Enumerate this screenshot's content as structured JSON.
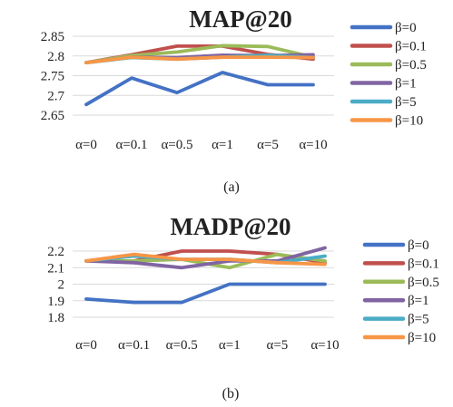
{
  "panels": [
    {
      "caption": "(a)",
      "chart_data": {
        "type": "line",
        "title": "MAP@20",
        "xlabel": "",
        "ylabel": "",
        "categories": [
          "α=0",
          "α=0.1",
          "α=0.5",
          "α=1",
          "α=5",
          "α=10"
        ],
        "ylim": [
          2.65,
          2.85
        ],
        "yticks": [
          "2.85",
          "2.8",
          "2.75",
          "2.7",
          "2.65"
        ],
        "ytick_values": [
          2.85,
          2.8,
          2.75,
          2.7,
          2.65
        ],
        "grid": true,
        "legend_position": "right",
        "series": [
          {
            "name": "β=0",
            "color": "#4472C4",
            "values": [
              2.677,
              2.744,
              2.707,
              2.758,
              2.727,
              2.727
            ]
          },
          {
            "name": "β=0.1",
            "color": "#C0504D",
            "values": [
              2.783,
              2.803,
              2.825,
              2.825,
              2.804,
              2.792
            ]
          },
          {
            "name": "β=0.5",
            "color": "#9BBB59",
            "values": [
              2.783,
              2.801,
              2.81,
              2.826,
              2.824,
              2.797
            ]
          },
          {
            "name": "β=1",
            "color": "#8064A2",
            "values": [
              2.783,
              2.797,
              2.796,
              2.802,
              2.801,
              2.803
            ]
          },
          {
            "name": "β=5",
            "color": "#4BACC6",
            "values": [
              2.783,
              2.796,
              2.792,
              2.797,
              2.802,
              2.796
            ]
          },
          {
            "name": "β=10",
            "color": "#F79646",
            "values": [
              2.783,
              2.797,
              2.792,
              2.797,
              2.797,
              2.796
            ]
          }
        ]
      }
    },
    {
      "caption": "(b)",
      "chart_data": {
        "type": "line",
        "title": "MADP@20",
        "xlabel": "",
        "ylabel": "",
        "categories": [
          "α=0",
          "α=0.1",
          "α=0.5",
          "α=1",
          "α=5",
          "α=10"
        ],
        "ylim": [
          1.8,
          2.2
        ],
        "yticks": [
          "2.2",
          "2.1",
          "2",
          "1.9",
          "1.8"
        ],
        "ytick_values": [
          2.2,
          2.1,
          2.0,
          1.9,
          1.8
        ],
        "grid": true,
        "legend_position": "right",
        "series": [
          {
            "name": "β=0",
            "color": "#4472C4",
            "values": [
              1.91,
              1.89,
              1.89,
              2.0,
              2.0,
              2.0
            ]
          },
          {
            "name": "β=0.1",
            "color": "#C0504D",
            "values": [
              2.14,
              2.14,
              2.2,
              2.2,
              2.18,
              2.13
            ]
          },
          {
            "name": "β=0.5",
            "color": "#9BBB59",
            "values": [
              2.14,
              2.14,
              2.15,
              2.1,
              2.18,
              2.14
            ]
          },
          {
            "name": "β=1",
            "color": "#8064A2",
            "values": [
              2.14,
              2.13,
              2.1,
              2.14,
              2.14,
              2.22
            ]
          },
          {
            "name": "β=5",
            "color": "#4BACC6",
            "values": [
              2.14,
              2.17,
              2.15,
              2.15,
              2.13,
              2.17
            ]
          },
          {
            "name": "β=10",
            "color": "#F79646",
            "values": [
              2.14,
              2.18,
              2.15,
              2.15,
              2.13,
              2.12
            ]
          }
        ]
      }
    }
  ]
}
